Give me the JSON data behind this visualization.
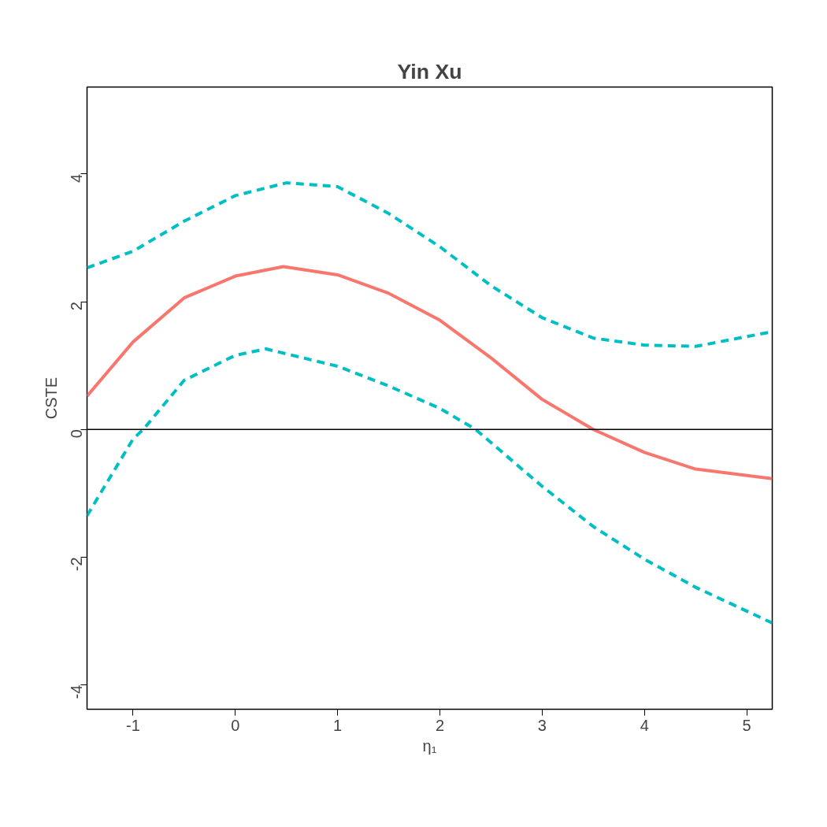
{
  "chart_data": {
    "type": "line",
    "title": "Yin Xu",
    "xlabel": "η₁",
    "ylabel": "CSTE",
    "xlim": [
      -1.45,
      5.25
    ],
    "ylim": [
      -4.38,
      5.36
    ],
    "xticks": [
      -1,
      0,
      1,
      2,
      3,
      4,
      5
    ],
    "yticks": [
      -4,
      -2,
      0,
      2,
      4
    ],
    "grid": false,
    "ref_lines": [
      {
        "axis": "y",
        "value": 0,
        "color": "#000000",
        "line_style": "solid"
      }
    ],
    "series": [
      {
        "color": "#f8766d",
        "line_style": "solid",
        "x": [
          -1.45,
          -1,
          -0.5,
          0,
          0.47,
          1,
          1.5,
          2,
          2.5,
          3,
          3.5,
          4,
          4.5,
          5.25
        ],
        "values": [
          0.52,
          1.37,
          2.06,
          2.4,
          2.55,
          2.42,
          2.13,
          1.71,
          1.12,
          0.47,
          0,
          -0.36,
          -0.62,
          -0.77
        ]
      },
      {
        "color": "#00bfc4",
        "line_style": "dashed",
        "x": [
          -1.45,
          -1,
          -0.5,
          0,
          0.5,
          1,
          1.5,
          2,
          2.5,
          3,
          3.5,
          4,
          4.5,
          5.25
        ],
        "values": [
          2.53,
          2.79,
          3.26,
          3.66,
          3.86,
          3.8,
          3.38,
          2.86,
          2.25,
          1.75,
          1.43,
          1.32,
          1.3,
          1.53
        ]
      },
      {
        "color": "#00bfc4",
        "line_style": "dashed",
        "x": [
          -1.45,
          -1,
          -0.9,
          -0.5,
          0,
          0.3,
          1,
          1.5,
          2,
          2.35,
          3,
          3.5,
          4,
          4.5,
          5.25
        ],
        "values": [
          -1.35,
          -0.15,
          0,
          0.77,
          1.16,
          1.26,
          0.99,
          0.68,
          0.33,
          0,
          -0.89,
          -1.52,
          -2.03,
          -2.47,
          -3.03
        ]
      }
    ]
  }
}
